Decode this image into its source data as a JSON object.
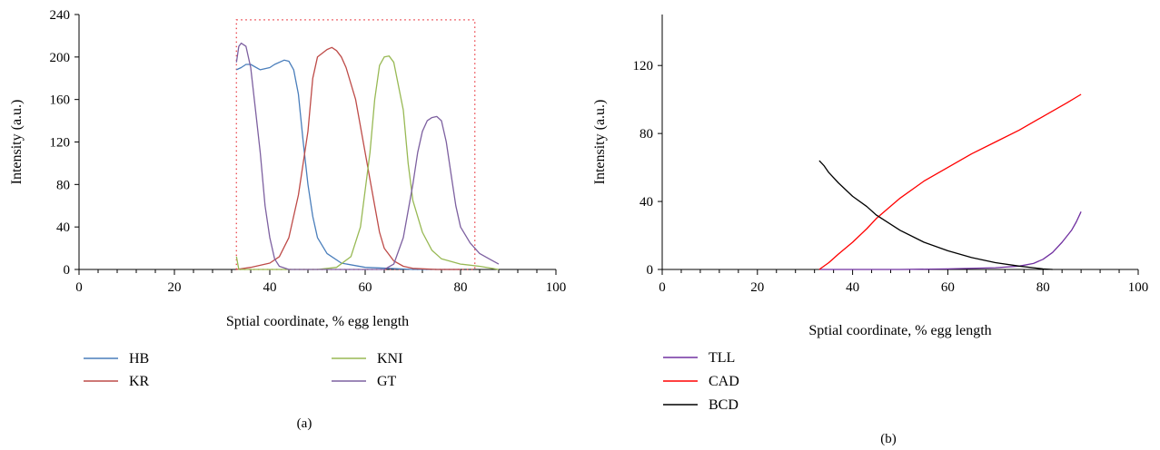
{
  "chart_data": [
    {
      "panel": "(a)",
      "type": "line",
      "xlabel": "Sptial coordinate, % egg length",
      "ylabel": "Intensity (a.u.)",
      "xlim": [
        0,
        100
      ],
      "ylim": [
        0,
        240
      ],
      "xticks": [
        0,
        20,
        40,
        60,
        80,
        100
      ],
      "yticks": [
        0,
        40,
        80,
        120,
        160,
        200,
        240
      ],
      "grid": false,
      "legend_position": "bottom",
      "highlight_box": {
        "x": [
          33,
          83
        ],
        "y": [
          0,
          235
        ],
        "color": "#e8333a",
        "style": "dotted"
      },
      "series": [
        {
          "name": "HB",
          "color": "#4a7ebb",
          "points": [
            [
              33,
              188
            ],
            [
              34,
              190
            ],
            [
              35,
              193
            ],
            [
              36,
              193
            ],
            [
              38,
              188
            ],
            [
              40,
              190
            ],
            [
              41,
              193
            ],
            [
              43,
              197
            ],
            [
              44,
              196
            ],
            [
              45,
              188
            ],
            [
              46,
              165
            ],
            [
              47,
              120
            ],
            [
              48,
              80
            ],
            [
              49,
              50
            ],
            [
              50,
              30
            ],
            [
              52,
              15
            ],
            [
              55,
              6
            ],
            [
              60,
              2
            ],
            [
              65,
              1
            ],
            [
              70,
              0
            ],
            [
              80,
              0
            ]
          ]
        },
        {
          "name": "KR",
          "color": "#be4b48",
          "points": [
            [
              33,
              0
            ],
            [
              36,
              2
            ],
            [
              40,
              6
            ],
            [
              42,
              12
            ],
            [
              44,
              30
            ],
            [
              46,
              70
            ],
            [
              48,
              130
            ],
            [
              49,
              180
            ],
            [
              50,
              200
            ],
            [
              52,
              207
            ],
            [
              53,
              209
            ],
            [
              54,
              206
            ],
            [
              55,
              200
            ],
            [
              56,
              190
            ],
            [
              58,
              160
            ],
            [
              60,
              110
            ],
            [
              62,
              60
            ],
            [
              63,
              35
            ],
            [
              64,
              20
            ],
            [
              66,
              8
            ],
            [
              68,
              3
            ],
            [
              70,
              1
            ],
            [
              75,
              0
            ],
            [
              80,
              0
            ]
          ]
        },
        {
          "name": "KNI",
          "color": "#98b954",
          "points": [
            [
              33,
              12
            ],
            [
              33.5,
              0
            ],
            [
              40,
              0
            ],
            [
              50,
              0
            ],
            [
              54,
              2
            ],
            [
              57,
              12
            ],
            [
              59,
              40
            ],
            [
              61,
              110
            ],
            [
              62,
              160
            ],
            [
              63,
              192
            ],
            [
              64,
              200
            ],
            [
              65,
              201
            ],
            [
              66,
              195
            ],
            [
              68,
              150
            ],
            [
              69,
              100
            ],
            [
              70,
              65
            ],
            [
              72,
              35
            ],
            [
              74,
              18
            ],
            [
              76,
              10
            ],
            [
              80,
              5
            ],
            [
              84,
              3
            ],
            [
              88,
              0
            ]
          ]
        },
        {
          "name": "GT",
          "color": "#7d60a0",
          "points": [
            [
              33,
              195
            ],
            [
              33.5,
              210
            ],
            [
              34,
              213
            ],
            [
              35,
              210
            ],
            [
              36,
              190
            ],
            [
              37,
              150
            ],
            [
              38,
              110
            ],
            [
              39,
              60
            ],
            [
              40,
              30
            ],
            [
              41,
              10
            ],
            [
              42,
              3
            ],
            [
              44,
              0
            ],
            [
              50,
              0
            ],
            [
              60,
              0
            ],
            [
              64,
              0
            ],
            [
              66,
              5
            ],
            [
              68,
              30
            ],
            [
              70,
              80
            ],
            [
              71,
              110
            ],
            [
              72,
              130
            ],
            [
              73,
              140
            ],
            [
              74,
              143
            ],
            [
              75,
              144
            ],
            [
              76,
              140
            ],
            [
              77,
              120
            ],
            [
              78,
              90
            ],
            [
              79,
              60
            ],
            [
              80,
              40
            ],
            [
              82,
              25
            ],
            [
              84,
              15
            ],
            [
              86,
              10
            ],
            [
              88,
              5
            ]
          ]
        }
      ]
    },
    {
      "panel": "(b)",
      "type": "line",
      "xlabel": "Sptial coordinate, % egg length",
      "ylabel": "Intensity (a.u.)",
      "xlim": [
        0,
        100
      ],
      "ylim": [
        0,
        150
      ],
      "xticks": [
        0,
        20,
        40,
        60,
        80,
        100
      ],
      "yticks": [
        0,
        40,
        80,
        120
      ],
      "grid": false,
      "legend_position": "bottom",
      "series": [
        {
          "name": "TLL",
          "color": "#7030a0",
          "points": [
            [
              33,
              0
            ],
            [
              40,
              0
            ],
            [
              50,
              0
            ],
            [
              60,
              0.3
            ],
            [
              70,
              1
            ],
            [
              75,
              2
            ],
            [
              78,
              3.5
            ],
            [
              80,
              6
            ],
            [
              82,
              10
            ],
            [
              84,
              16
            ],
            [
              86,
              23
            ],
            [
              87,
              28
            ],
            [
              88,
              34
            ]
          ]
        },
        {
          "name": "CAD",
          "color": "#ff0000",
          "points": [
            [
              33,
              0
            ],
            [
              35,
              4
            ],
            [
              37,
              9
            ],
            [
              40,
              16
            ],
            [
              43,
              24
            ],
            [
              45,
              30
            ],
            [
              50,
              42
            ],
            [
              55,
              52
            ],
            [
              60,
              60
            ],
            [
              65,
              68
            ],
            [
              70,
              75
            ],
            [
              75,
              82
            ],
            [
              80,
              90
            ],
            [
              85,
              98
            ],
            [
              88,
              103
            ]
          ]
        },
        {
          "name": "BCD",
          "color": "#000000",
          "points": [
            [
              33,
              64
            ],
            [
              34,
              61
            ],
            [
              35,
              57
            ],
            [
              37,
              51
            ],
            [
              40,
              43
            ],
            [
              43,
              37
            ],
            [
              45,
              32
            ],
            [
              50,
              23
            ],
            [
              55,
              16
            ],
            [
              60,
              11
            ],
            [
              65,
              7
            ],
            [
              70,
              4
            ],
            [
              75,
              2
            ],
            [
              78,
              1
            ],
            [
              80,
              0.3
            ],
            [
              82,
              0
            ]
          ]
        }
      ]
    }
  ]
}
